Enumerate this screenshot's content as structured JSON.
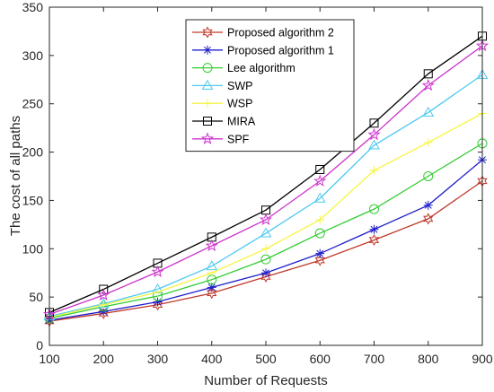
{
  "chart_data": {
    "type": "line",
    "title": "",
    "xlabel": "Number of Requests",
    "ylabel": "The cost of all paths",
    "xlim": [
      100,
      900
    ],
    "ylim": [
      0,
      350
    ],
    "x_ticks": [
      100,
      200,
      300,
      400,
      500,
      600,
      700,
      800,
      900
    ],
    "y_ticks": [
      0,
      50,
      100,
      150,
      200,
      250,
      300,
      350
    ],
    "grid": false,
    "legend_position": "top-center",
    "x": [
      100,
      200,
      300,
      400,
      500,
      600,
      700,
      800,
      900
    ],
    "series": [
      {
        "name": "Proposed algorithm 2",
        "color": "#C0392B",
        "marker": "hexagram",
        "values": [
          25,
          33,
          42,
          54,
          71,
          88,
          109,
          131,
          170
        ]
      },
      {
        "name": "Proposed algorithm 1",
        "color": "#1F1FCC",
        "marker": "asterisk",
        "values": [
          26,
          35,
          45,
          60,
          75,
          95,
          120,
          145,
          192
        ]
      },
      {
        "name": "Lee algorithm",
        "color": "#33CC33",
        "marker": "circle",
        "values": [
          28,
          40,
          51,
          68,
          89,
          116,
          141,
          175,
          209
        ]
      },
      {
        "name": "SWP",
        "color": "#4DC9F0",
        "marker": "triangle",
        "values": [
          30,
          43,
          58,
          82,
          116,
          152,
          207,
          241,
          280
        ]
      },
      {
        "name": "WSP",
        "color": "#F5F542",
        "marker": "plus",
        "values": [
          29,
          42,
          55,
          75,
          100,
          130,
          181,
          210,
          240
        ]
      },
      {
        "name": "MIRA",
        "color": "#000000",
        "marker": "square",
        "values": [
          34,
          58,
          85,
          112,
          140,
          182,
          230,
          281,
          320
        ]
      },
      {
        "name": "SPF",
        "color": "#CC33CC",
        "marker": "star",
        "values": [
          32,
          52,
          76,
          103,
          130,
          170,
          218,
          269,
          310
        ]
      }
    ]
  }
}
